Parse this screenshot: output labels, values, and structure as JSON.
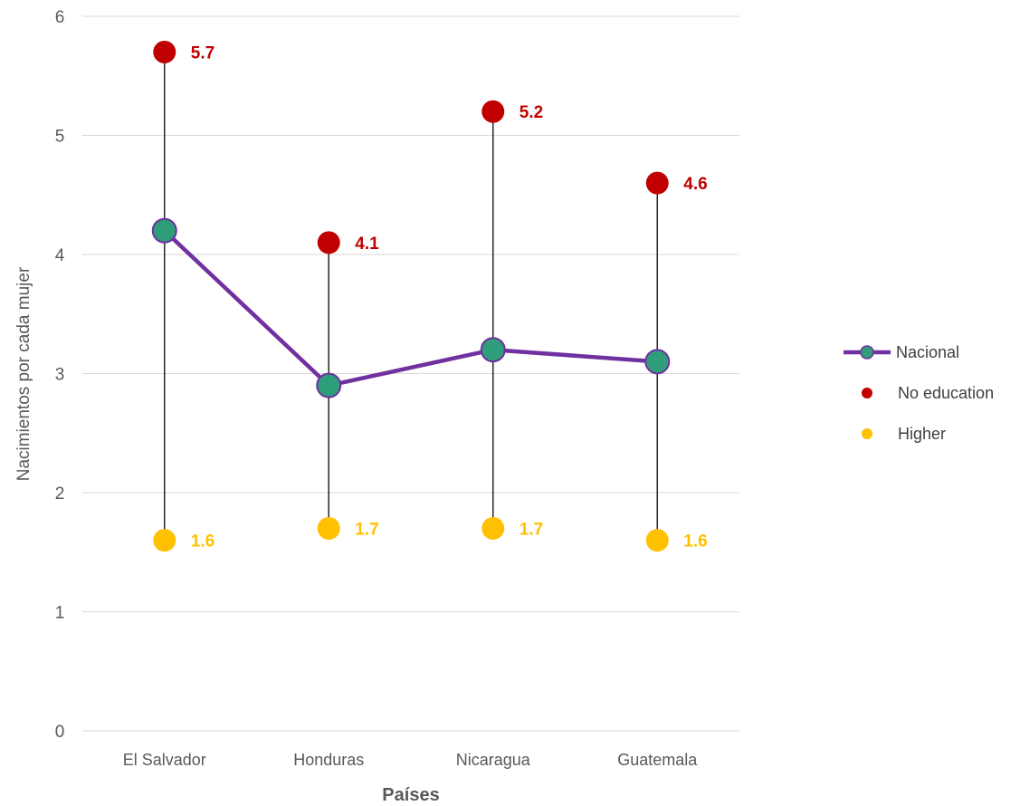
{
  "chart_data": {
    "type": "line",
    "title": "",
    "xlabel": "Países",
    "ylabel": "Nacimientos por cada mujer",
    "categories": [
      "El Salvador",
      "Honduras",
      "Nicaragua",
      "Guatemala"
    ],
    "ylim": [
      0,
      6
    ],
    "yticks": [
      "0",
      "1",
      "2",
      "3",
      "4",
      "5",
      "6"
    ],
    "grid": true,
    "legend_position": "right",
    "series": [
      {
        "name": "Nacional",
        "style": "line-marker",
        "values": [
          4.2,
          2.9,
          3.2,
          3.1
        ],
        "color": "#7030A0",
        "marker_color": "#2E9E7A",
        "show_labels": false
      },
      {
        "name": "No education",
        "style": "marker",
        "values": [
          5.7,
          4.1,
          5.2,
          4.6
        ],
        "color": "#C00000",
        "labels": [
          "5.7",
          "4.1",
          "5.2",
          "4.6"
        ],
        "show_labels": true
      },
      {
        "name": "Higher",
        "style": "marker",
        "values": [
          1.6,
          1.7,
          1.7,
          1.6
        ],
        "color": "#FFC000",
        "labels": [
          "1.6",
          "1.7",
          "1.7",
          "1.6"
        ],
        "show_labels": true
      }
    ],
    "range_lines": {
      "color": "#262626",
      "from_series": "Higher",
      "to_series": "No education"
    }
  }
}
